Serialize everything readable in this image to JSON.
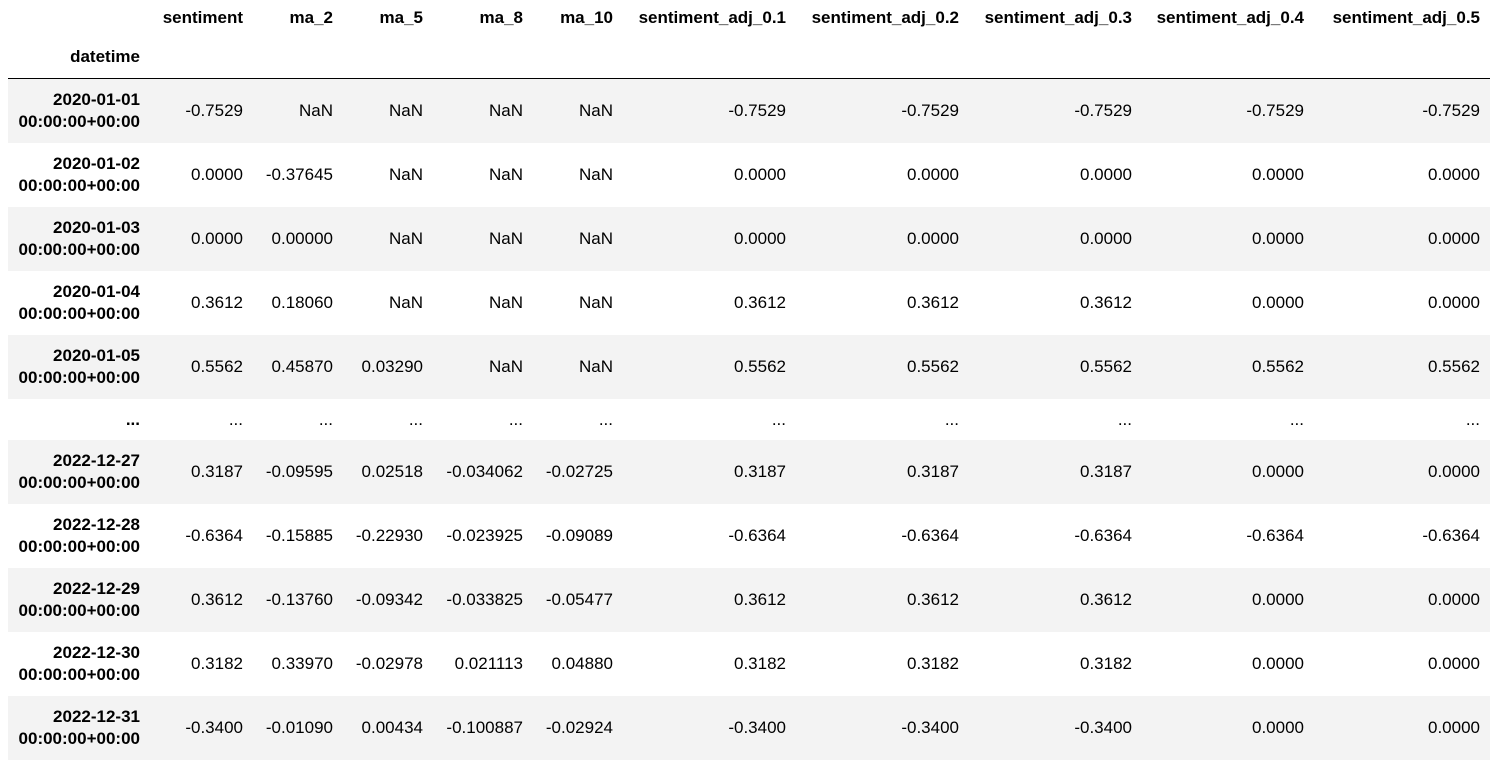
{
  "columns": [
    "sentiment",
    "ma_2",
    "ma_5",
    "ma_8",
    "ma_10",
    "sentiment_adj_0.1",
    "sentiment_adj_0.2",
    "sentiment_adj_0.3",
    "sentiment_adj_0.4",
    "sentiment_adj_0.5"
  ],
  "index_name": "datetime",
  "rows_top": [
    {
      "date": "2020-01-01",
      "time": "00:00:00+00:00",
      "values": [
        "-0.7529",
        "NaN",
        "NaN",
        "NaN",
        "NaN",
        "-0.7529",
        "-0.7529",
        "-0.7529",
        "-0.7529",
        "-0.7529"
      ]
    },
    {
      "date": "2020-01-02",
      "time": "00:00:00+00:00",
      "values": [
        "0.0000",
        "-0.37645",
        "NaN",
        "NaN",
        "NaN",
        "0.0000",
        "0.0000",
        "0.0000",
        "0.0000",
        "0.0000"
      ]
    },
    {
      "date": "2020-01-03",
      "time": "00:00:00+00:00",
      "values": [
        "0.0000",
        "0.00000",
        "NaN",
        "NaN",
        "NaN",
        "0.0000",
        "0.0000",
        "0.0000",
        "0.0000",
        "0.0000"
      ]
    },
    {
      "date": "2020-01-04",
      "time": "00:00:00+00:00",
      "values": [
        "0.3612",
        "0.18060",
        "NaN",
        "NaN",
        "NaN",
        "0.3612",
        "0.3612",
        "0.3612",
        "0.0000",
        "0.0000"
      ]
    },
    {
      "date": "2020-01-05",
      "time": "00:00:00+00:00",
      "values": [
        "0.5562",
        "0.45870",
        "0.03290",
        "NaN",
        "NaN",
        "0.5562",
        "0.5562",
        "0.5562",
        "0.5562",
        "0.5562"
      ]
    }
  ],
  "ellipsis": "...",
  "rows_bottom": [
    {
      "date": "2022-12-27",
      "time": "00:00:00+00:00",
      "values": [
        "0.3187",
        "-0.09595",
        "0.02518",
        "-0.034062",
        "-0.02725",
        "0.3187",
        "0.3187",
        "0.3187",
        "0.0000",
        "0.0000"
      ]
    },
    {
      "date": "2022-12-28",
      "time": "00:00:00+00:00",
      "values": [
        "-0.6364",
        "-0.15885",
        "-0.22930",
        "-0.023925",
        "-0.09089",
        "-0.6364",
        "-0.6364",
        "-0.6364",
        "-0.6364",
        "-0.6364"
      ]
    },
    {
      "date": "2022-12-29",
      "time": "00:00:00+00:00",
      "values": [
        "0.3612",
        "-0.13760",
        "-0.09342",
        "-0.033825",
        "-0.05477",
        "0.3612",
        "0.3612",
        "0.3612",
        "0.0000",
        "0.0000"
      ]
    },
    {
      "date": "2022-12-30",
      "time": "00:00:00+00:00",
      "values": [
        "0.3182",
        "0.33970",
        "-0.02978",
        "0.021113",
        "0.04880",
        "0.3182",
        "0.3182",
        "0.3182",
        "0.0000",
        "0.0000"
      ]
    },
    {
      "date": "2022-12-31",
      "time": "00:00:00+00:00",
      "values": [
        "-0.3400",
        "-0.01090",
        "0.00434",
        "-0.100887",
        "-0.02924",
        "-0.3400",
        "-0.3400",
        "-0.3400",
        "0.0000",
        "0.0000"
      ]
    }
  ],
  "colors": {
    "row_shade": "#f3f3f3",
    "header_rule": "#000000"
  }
}
